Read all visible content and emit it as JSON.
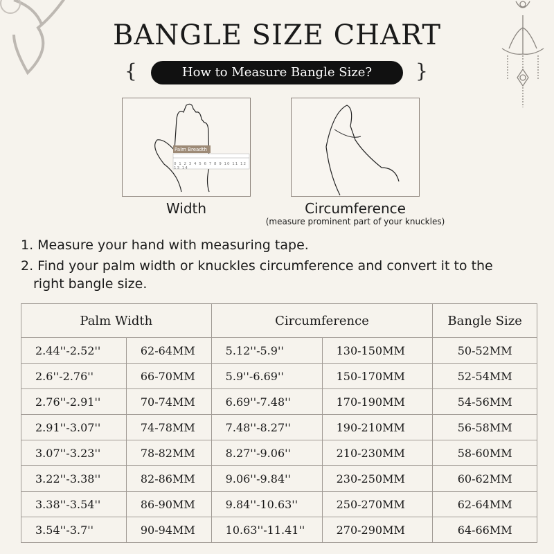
{
  "header": {
    "title": "BANGLE SIZE CHART",
    "subtitle": "How to Measure Bangle Size?"
  },
  "illustrations": {
    "width": {
      "caption": "Width",
      "ruler_label": "Palm Breadth",
      "ruler_ticks": [
        "0",
        "1",
        "2",
        "3",
        "4",
        "5",
        "6",
        "7",
        "8",
        "9",
        "10",
        "11",
        "12",
        "13",
        "14"
      ]
    },
    "circumference": {
      "caption": "Circumference",
      "note": "(measure prominent part of your knuckles)"
    }
  },
  "steps": [
    "1. Measure your hand with measuring tape.",
    "2. Find your palm width or knuckles circumference and convert it to the",
    "right bangle size."
  ],
  "table": {
    "headers": [
      "Palm Width",
      "Circumference",
      "Bangle Size"
    ],
    "rows": [
      [
        "2.44''-2.52''",
        "62-64MM",
        "5.12''-5.9''",
        "130-150MM",
        "50-52MM"
      ],
      [
        "2.6''-2.76''",
        "66-70MM",
        "5.9''-6.69''",
        "150-170MM",
        "52-54MM"
      ],
      [
        "2.76''-2.91''",
        "70-74MM",
        "6.69''-7.48''",
        "170-190MM",
        "54-56MM"
      ],
      [
        "2.91''-3.07''",
        "74-78MM",
        "7.48''-8.27''",
        "190-210MM",
        "56-58MM"
      ],
      [
        "3.07''-3.23''",
        "78-82MM",
        "8.27''-9.06''",
        "210-230MM",
        "58-60MM"
      ],
      [
        "3.22''-3.38''",
        "82-86MM",
        "9.06''-9.84''",
        "230-250MM",
        "60-62MM"
      ],
      [
        "3.38''-3.54''",
        "86-90MM",
        "9.84''-10.63''",
        "250-270MM",
        "62-64MM"
      ],
      [
        "3.54''-3.7''",
        "90-94MM",
        "10.63''-11.41''",
        "270-290MM",
        "64-66MM"
      ]
    ]
  }
}
